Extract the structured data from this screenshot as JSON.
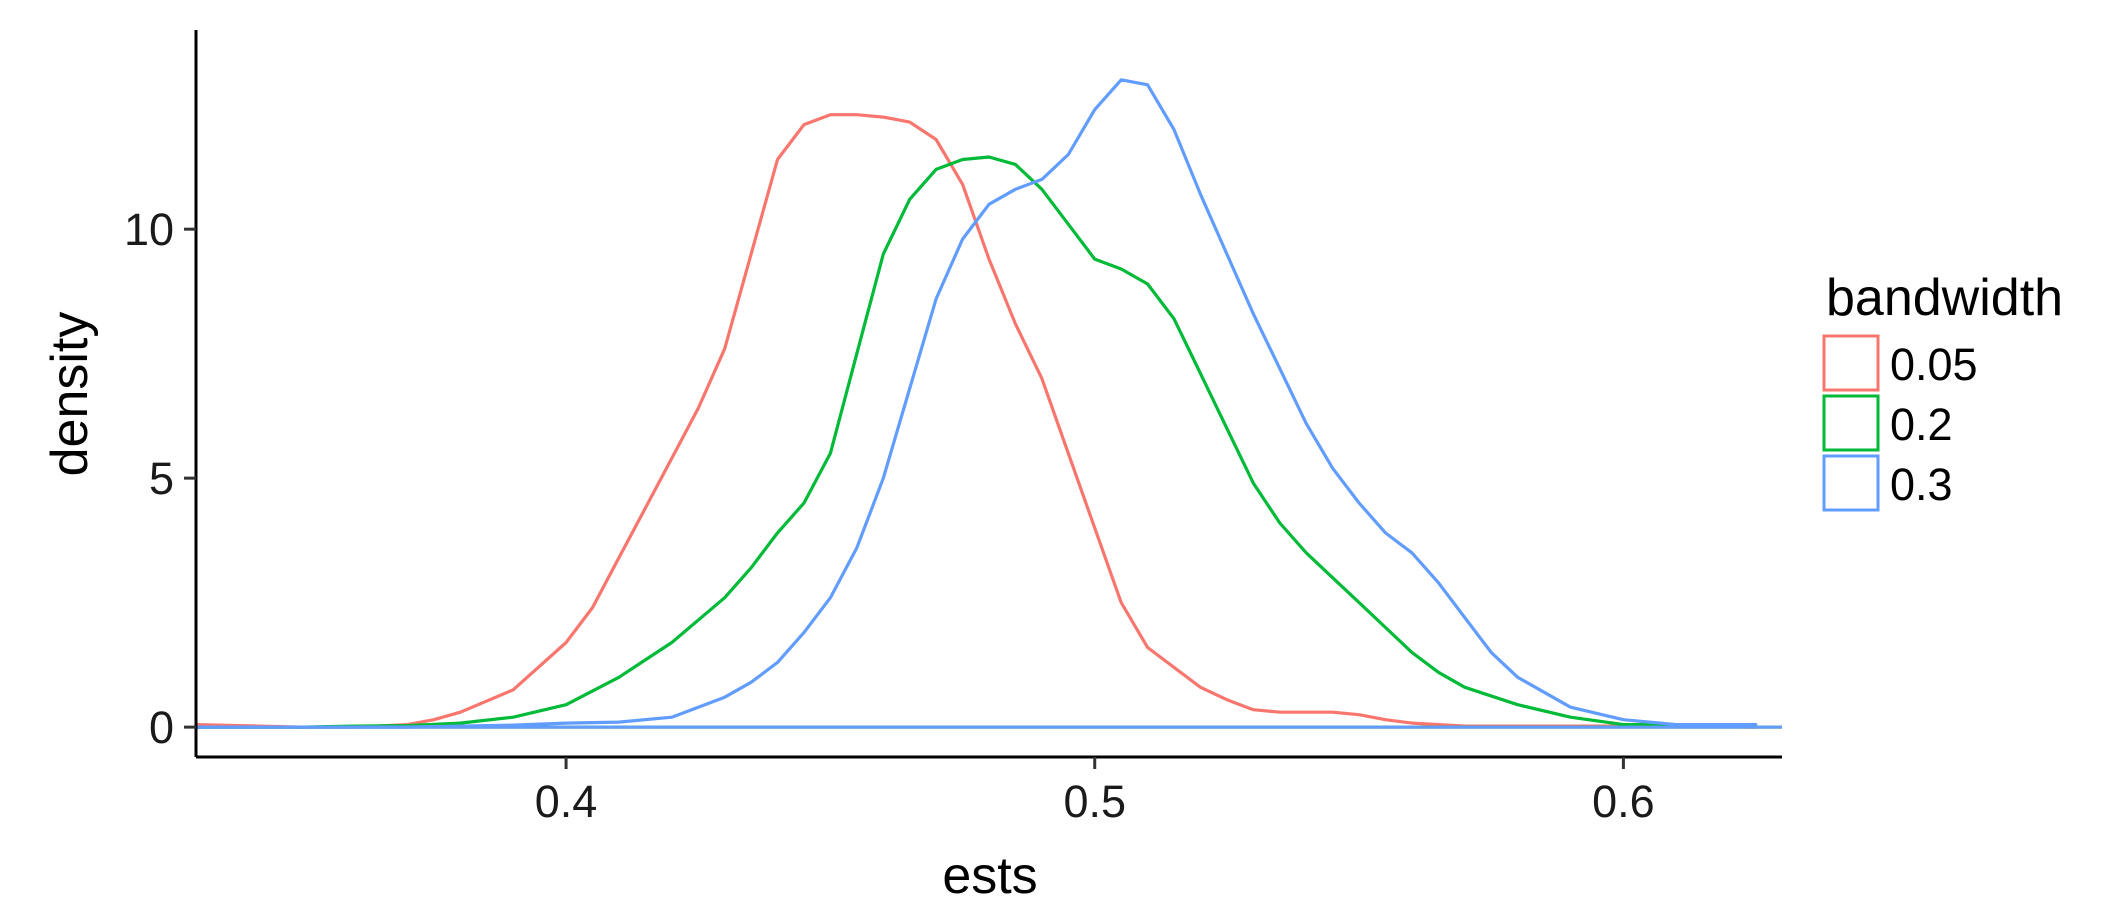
{
  "chart_data": {
    "type": "line",
    "xlabel": "ests",
    "ylabel": "density",
    "xlim": [
      0.33,
      0.63
    ],
    "ylim": [
      0,
      13.2
    ],
    "x_ticks": [
      0.4,
      0.5,
      0.6
    ],
    "x_tick_labels": [
      "0.4",
      "0.5",
      "0.6"
    ],
    "y_ticks": [
      0,
      5,
      10
    ],
    "y_tick_labels": [
      "0",
      "5",
      "10"
    ],
    "grid": false,
    "legend": {
      "title": "bandwidth",
      "position": "right"
    },
    "series": [
      {
        "name": "0.05",
        "color": "#F8766D",
        "x": [
          0.33,
          0.35,
          0.36,
          0.37,
          0.375,
          0.38,
          0.39,
          0.4,
          0.405,
          0.41,
          0.415,
          0.42,
          0.425,
          0.43,
          0.435,
          0.44,
          0.445,
          0.45,
          0.455,
          0.46,
          0.465,
          0.47,
          0.475,
          0.48,
          0.485,
          0.49,
          0.495,
          0.5,
          0.505,
          0.51,
          0.515,
          0.52,
          0.525,
          0.53,
          0.535,
          0.54,
          0.545,
          0.55,
          0.555,
          0.56,
          0.565,
          0.57,
          0.58,
          0.59,
          0.6,
          0.61,
          0.625
        ],
        "y": [
          0.05,
          0.0,
          0.0,
          0.05,
          0.15,
          0.3,
          0.75,
          1.7,
          2.4,
          3.4,
          4.4,
          5.4,
          6.4,
          7.6,
          9.5,
          11.4,
          12.1,
          12.3,
          12.3,
          12.25,
          12.15,
          11.8,
          10.9,
          9.4,
          8.1,
          7.0,
          5.5,
          4.0,
          2.5,
          1.6,
          1.2,
          0.8,
          0.55,
          0.35,
          0.3,
          0.3,
          0.3,
          0.25,
          0.15,
          0.08,
          0.05,
          0.02,
          0.02,
          0.02,
          0.02,
          0.02,
          0.0
        ],
        "baseline": 0
      },
      {
        "name": "0.2",
        "color": "#00BA38",
        "x": [
          0.33,
          0.35,
          0.36,
          0.37,
          0.38,
          0.39,
          0.4,
          0.41,
          0.42,
          0.43,
          0.435,
          0.44,
          0.445,
          0.45,
          0.455,
          0.46,
          0.465,
          0.47,
          0.475,
          0.48,
          0.485,
          0.49,
          0.495,
          0.5,
          0.505,
          0.51,
          0.515,
          0.52,
          0.525,
          0.53,
          0.535,
          0.54,
          0.545,
          0.55,
          0.555,
          0.56,
          0.565,
          0.57,
          0.58,
          0.59,
          0.6,
          0.61,
          0.625
        ],
        "y": [
          0.0,
          0.0,
          0.02,
          0.03,
          0.08,
          0.2,
          0.45,
          1.0,
          1.7,
          2.6,
          3.2,
          3.9,
          4.5,
          5.5,
          7.5,
          9.5,
          10.6,
          11.2,
          11.4,
          11.45,
          11.3,
          10.8,
          10.1,
          9.4,
          9.2,
          8.9,
          8.2,
          7.1,
          6.0,
          4.9,
          4.1,
          3.5,
          3.0,
          2.5,
          2.0,
          1.5,
          1.1,
          0.8,
          0.45,
          0.2,
          0.05,
          0.05,
          0.05
        ],
        "baseline": 0
      },
      {
        "name": "0.3",
        "color": "#619CFF",
        "x": [
          0.33,
          0.35,
          0.36,
          0.37,
          0.38,
          0.39,
          0.4,
          0.41,
          0.42,
          0.43,
          0.435,
          0.44,
          0.445,
          0.45,
          0.455,
          0.46,
          0.465,
          0.47,
          0.475,
          0.48,
          0.485,
          0.49,
          0.495,
          0.5,
          0.505,
          0.51,
          0.515,
          0.52,
          0.525,
          0.53,
          0.535,
          0.54,
          0.545,
          0.55,
          0.555,
          0.56,
          0.565,
          0.57,
          0.575,
          0.58,
          0.59,
          0.6,
          0.61,
          0.625
        ],
        "y": [
          0.0,
          0.0,
          0.0,
          0.0,
          0.02,
          0.04,
          0.08,
          0.1,
          0.2,
          0.6,
          0.9,
          1.3,
          1.9,
          2.6,
          3.6,
          5.0,
          6.8,
          8.6,
          9.8,
          10.5,
          10.8,
          11.0,
          11.5,
          12.4,
          13.0,
          12.9,
          12.0,
          10.7,
          9.5,
          8.3,
          7.2,
          6.1,
          5.2,
          4.5,
          3.9,
          3.5,
          2.9,
          2.2,
          1.5,
          1.0,
          0.4,
          0.15,
          0.05,
          0.05
        ],
        "baseline": 0
      }
    ]
  }
}
